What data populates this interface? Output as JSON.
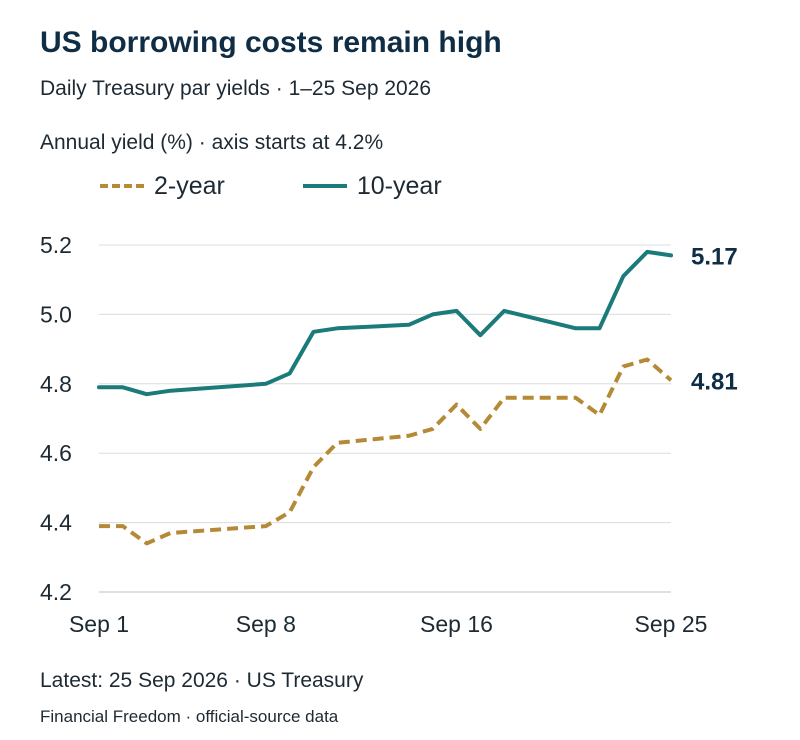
{
  "title": "US borrowing costs remain high",
  "subtitle": "Daily Treasury par yields · 1–25 Sep 2026",
  "footer": {
    "source": "Latest: 25 Sep 2026 · US Treasury",
    "credit": "Financial Freedom · official-source data"
  },
  "colors": {
    "two_year": "#b58a37",
    "ten_year": "#1b7a7a",
    "grid": "#dcdcdc",
    "text": "#0f2d44"
  },
  "chart_data": {
    "type": "line",
    "ylabel": "Annual yield (%) · axis starts at 4.2%",
    "ylim": [
      4.2,
      5.2
    ],
    "y_ticks": [
      "4.2",
      "4.4",
      "4.6",
      "4.8",
      "5.0",
      "5.2"
    ],
    "xlim": [
      1,
      25
    ],
    "x_ticks": [
      {
        "day": 1,
        "label": "Sep 1"
      },
      {
        "day": 8,
        "label": "Sep 8"
      },
      {
        "day": 16,
        "label": "Sep 16"
      },
      {
        "day": 25,
        "label": "Sep 25"
      }
    ],
    "grid": "horizontal",
    "legend_position": "top-left",
    "series": [
      {
        "name": "2-year",
        "style": "dashed",
        "end_label": "4.81",
        "points": [
          [
            1,
            4.39
          ],
          [
            2,
            4.39
          ],
          [
            3,
            4.34
          ],
          [
            4,
            4.37
          ],
          [
            8,
            4.39
          ],
          [
            9,
            4.43
          ],
          [
            10,
            4.56
          ],
          [
            11,
            4.63
          ],
          [
            14,
            4.65
          ],
          [
            15,
            4.67
          ],
          [
            16,
            4.74
          ],
          [
            17,
            4.67
          ],
          [
            18,
            4.76
          ],
          [
            21,
            4.76
          ],
          [
            22,
            4.71
          ],
          [
            23,
            4.85
          ],
          [
            24,
            4.87
          ],
          [
            25,
            4.81
          ]
        ]
      },
      {
        "name": "10-year",
        "style": "solid",
        "end_label": "5.17",
        "points": [
          [
            1,
            4.79
          ],
          [
            2,
            4.79
          ],
          [
            3,
            4.77
          ],
          [
            4,
            4.78
          ],
          [
            8,
            4.8
          ],
          [
            9,
            4.83
          ],
          [
            10,
            4.95
          ],
          [
            11,
            4.96
          ],
          [
            14,
            4.97
          ],
          [
            15,
            5.0
          ],
          [
            16,
            5.01
          ],
          [
            17,
            4.94
          ],
          [
            18,
            5.01
          ],
          [
            21,
            4.96
          ],
          [
            22,
            4.96
          ],
          [
            23,
            5.11
          ],
          [
            24,
            5.18
          ],
          [
            25,
            5.17
          ]
        ]
      }
    ]
  }
}
